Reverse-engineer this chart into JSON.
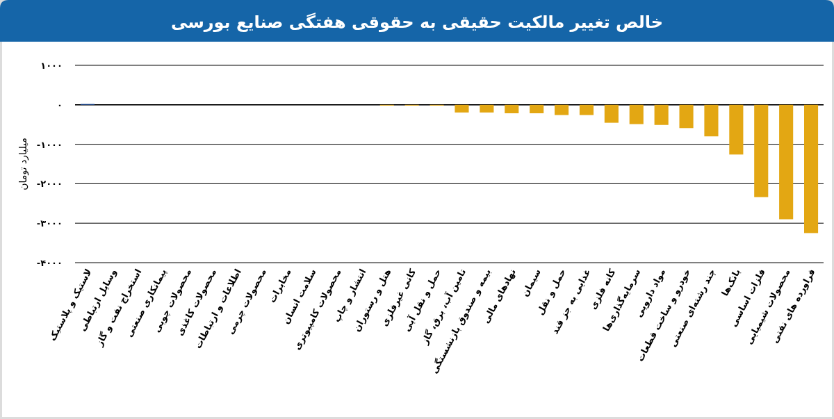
{
  "chart_data": {
    "type": "bar",
    "title": "خالص تغییر مالکیت حقیقی به حقوقی هفتگی صنایع بورسی",
    "ylabel": "میلیارد تومان",
    "categories": [
      "لاستیک و پلاستیک",
      "وسایل ارتباطی",
      "استخراج نفت و گاز",
      "پیمانکاری صنعتی",
      "محصولات چوبی",
      "محصولات کاغذی",
      "اطلاعات و ارتباطات",
      "محصولات چرمی",
      "مخابرات",
      "سلامت انسان",
      "محصولات کامپیوتری",
      "انتشار و چاپ",
      "هتل و رستوران",
      "کانی غیرفلزی",
      "حمل و نقل آبی",
      "تامین آب، برق، گاز",
      "بیمه و صندوق بازنشستگی",
      "نهادهای مالی",
      "سیمان",
      "حمل و نقل",
      "غذایی به جز قند",
      "کانه فلزی",
      "سرمایه‌گذاری‌ها",
      "مواد دارویی",
      "خودرو و ساخت قطعات",
      "چند رشته‌ای صنعتی",
      "بانک‌ها",
      "فلزات اساسی",
      "محصولات شیمیایی",
      "فراورده های نفتی"
    ],
    "values": [
      20,
      0,
      0,
      0,
      0,
      0,
      0,
      0,
      0,
      0,
      0,
      0,
      -20,
      -20,
      -20,
      -195,
      -195,
      -215,
      -215,
      -260,
      -260,
      -455,
      -490,
      -510,
      -590,
      -800,
      -1260,
      -2340,
      -2900,
      -3250
    ],
    "colors": [
      "#1f4e9c",
      "#e3a713",
      "#e3a713",
      "#e3a713",
      "#e3a713",
      "#e3a713",
      "#e3a713",
      "#e3a713",
      "#e3a713",
      "#e3a713",
      "#e3a713",
      "#e3a713",
      "#e3a713",
      "#e3a713",
      "#e3a713",
      "#e3a713",
      "#e3a713",
      "#e3a713",
      "#e3a713",
      "#e3a713",
      "#e3a713",
      "#e3a713",
      "#e3a713",
      "#e3a713",
      "#e3a713",
      "#e3a713",
      "#e3a713",
      "#e3a713",
      "#e3a713",
      "#e3a713"
    ],
    "ylim": [
      -4000,
      1000
    ],
    "yticks": [
      {
        "value": 1000,
        "label": "۱۰۰۰"
      },
      {
        "value": 0,
        "label": "۰"
      },
      {
        "value": -1000,
        "label": "-۱۰۰۰"
      },
      {
        "value": -2000,
        "label": "-۲۰۰۰"
      },
      {
        "value": -3000,
        "label": "-۳۰۰۰"
      },
      {
        "value": -4000,
        "label": "-۴۰۰۰"
      }
    ],
    "grid": "y"
  }
}
